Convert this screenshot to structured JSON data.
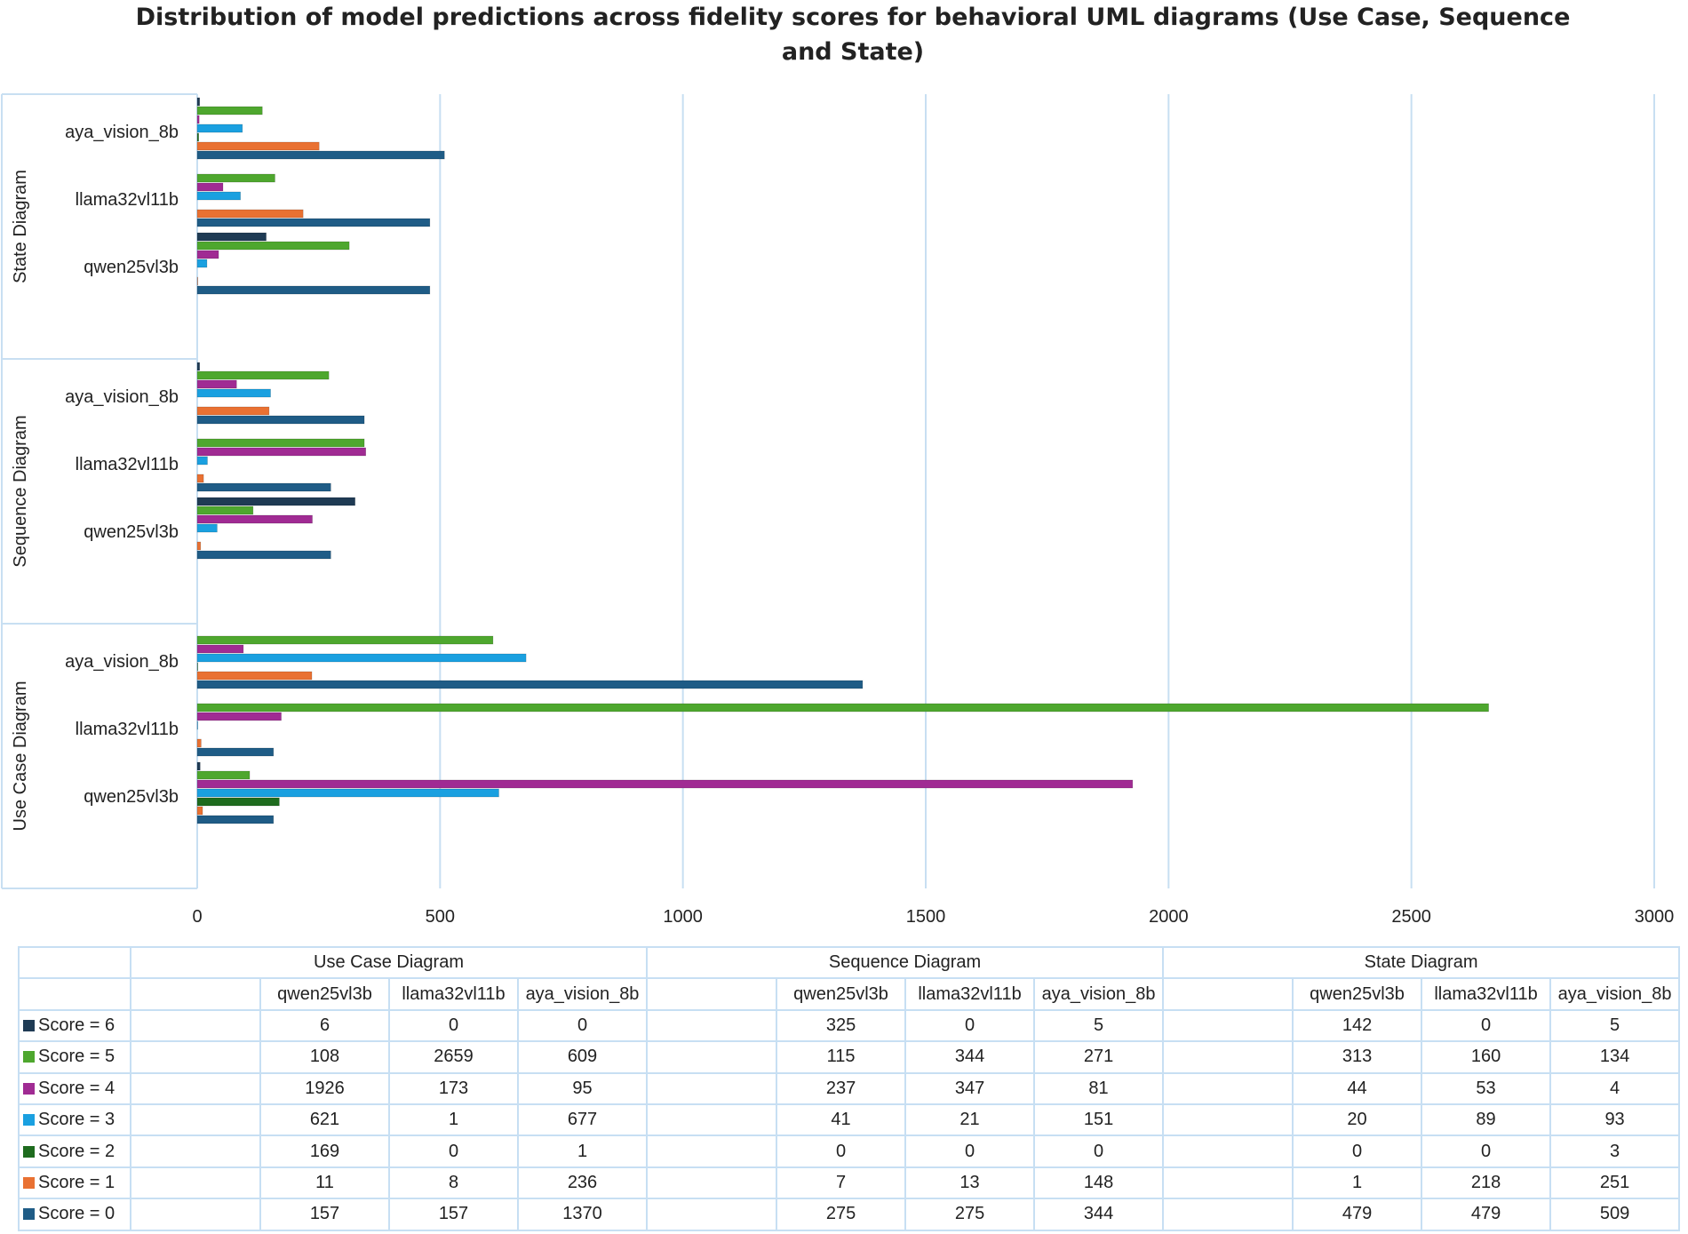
{
  "chart_data": {
    "type": "bar",
    "orientation": "horizontal",
    "title": "Distribution of model predictions across fidelity scores for behavioral UML diagrams (Use Case, Sequence and State)",
    "xlim": [
      0,
      3000
    ],
    "x_ticks": [
      0,
      500,
      1000,
      1500,
      2000,
      2500,
      3000
    ],
    "grid": true,
    "groups": [
      "Use Case Diagram",
      "Sequence Diagram",
      "State Diagram"
    ],
    "models": [
      "qwen25vl3b",
      "llama32vl11b",
      "aya_vision_8b"
    ],
    "series": [
      {
        "name": "Score = 6",
        "color": "#1f3b54",
        "values": [
          [
            6,
            0,
            0
          ],
          [
            325,
            0,
            5
          ],
          [
            142,
            0,
            5
          ]
        ]
      },
      {
        "name": "Score = 5",
        "color": "#4ea72e",
        "values": [
          [
            108,
            2659,
            609
          ],
          [
            115,
            344,
            271
          ],
          [
            313,
            160,
            134
          ]
        ]
      },
      {
        "name": "Score = 4",
        "color": "#a02b93",
        "values": [
          [
            1926,
            173,
            95
          ],
          [
            237,
            347,
            81
          ],
          [
            44,
            53,
            4
          ]
        ]
      },
      {
        "name": "Score = 3",
        "color": "#1aa0e0",
        "values": [
          [
            621,
            1,
            677
          ],
          [
            41,
            21,
            151
          ],
          [
            20,
            89,
            93
          ]
        ]
      },
      {
        "name": "Score = 2",
        "color": "#1e6b1e",
        "values": [
          [
            169,
            0,
            1
          ],
          [
            0,
            0,
            0
          ],
          [
            0,
            0,
            3
          ]
        ]
      },
      {
        "name": "Score = 1",
        "color": "#e97132",
        "values": [
          [
            11,
            8,
            236
          ],
          [
            7,
            13,
            148
          ],
          [
            1,
            218,
            251
          ]
        ]
      },
      {
        "name": "Score = 0",
        "color": "#1f5c86",
        "values": [
          [
            157,
            157,
            1370
          ],
          [
            275,
            275,
            344
          ],
          [
            479,
            479,
            509
          ]
        ]
      }
    ]
  }
}
